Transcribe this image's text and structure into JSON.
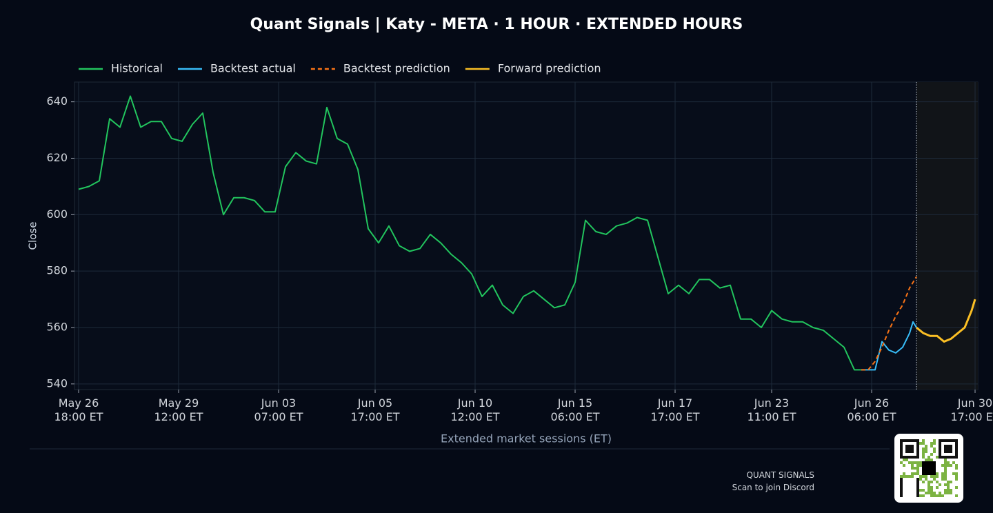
{
  "chart_data": {
    "type": "line",
    "title": "Quant Signals | Katy - META  ·  1 HOUR  ·  EXTENDED HOURS",
    "y_label": "Close",
    "x_label": "Extended market sessions (ET)",
    "ylim": [
      538,
      647
    ],
    "yticks": [
      540,
      560,
      580,
      600,
      620,
      640
    ],
    "xlim": [
      -1.2,
      260.8
    ],
    "xticks": [
      {
        "value": 0,
        "label": "May 26\n18:00 ET"
      },
      {
        "value": 29,
        "label": "May 29\n12:00 ET"
      },
      {
        "value": 58,
        "label": "Jun 03\n07:00 ET"
      },
      {
        "value": 86,
        "label": "Jun 05\n17:00 ET"
      },
      {
        "value": 115,
        "label": "Jun 10\n12:00 ET"
      },
      {
        "value": 144,
        "label": "Jun 15\n06:00 ET"
      },
      {
        "value": 173,
        "label": "Jun 17\n17:00 ET"
      },
      {
        "value": 201,
        "label": "Jun 23\n11:00 ET"
      },
      {
        "value": 230,
        "label": "Jun 26\n06:00 ET"
      },
      {
        "value": 260,
        "label": "Jun 30\n17:00 ET"
      }
    ],
    "grid": true,
    "legend": "top-left",
    "series": [
      {
        "name": "Historical",
        "color": "#22c55e",
        "dashed": false,
        "x": [
          0,
          3,
          6,
          9,
          12,
          15,
          18,
          21,
          24,
          27,
          30,
          33,
          36,
          39,
          42,
          45,
          48,
          51,
          54,
          57,
          60,
          63,
          66,
          69,
          72,
          75,
          78,
          81,
          84,
          87,
          90,
          93,
          96,
          99,
          102,
          105,
          108,
          111,
          114,
          117,
          120,
          123,
          126,
          129,
          132,
          135,
          138,
          141,
          144,
          147,
          150,
          153,
          156,
          159,
          162,
          165,
          168,
          171,
          174,
          177,
          180,
          183,
          186,
          189,
          192,
          195,
          198,
          201,
          204,
          207,
          210,
          213,
          216,
          219,
          222,
          225,
          227
        ],
        "values": [
          609,
          610,
          612,
          634,
          631,
          642,
          631,
          633,
          633,
          627,
          626,
          632,
          636,
          615,
          600,
          606,
          606,
          605,
          601,
          601,
          617,
          622,
          619,
          618,
          638,
          627,
          625,
          616,
          595,
          590,
          596,
          589,
          587,
          588,
          593,
          590,
          586,
          583,
          579,
          571,
          575,
          568,
          565,
          571,
          573,
          570,
          567,
          568,
          576,
          598,
          594,
          593,
          596,
          597,
          599,
          598,
          585,
          572,
          575,
          572,
          577,
          577,
          574,
          575,
          563,
          563,
          560,
          566,
          563,
          562,
          562,
          560,
          559,
          556,
          553,
          545,
          545
        ]
      },
      {
        "name": "Backtest actual",
        "color": "#38bdf8",
        "dashed": false,
        "x": [
          227,
          229,
          231,
          233,
          235,
          237,
          239,
          241,
          242,
          243
        ],
        "values": [
          545,
          545,
          545,
          555,
          552,
          551,
          553,
          558,
          562,
          560
        ]
      },
      {
        "name": "Backtest prediction",
        "color": "#f97316",
        "dashed": true,
        "x": [
          227,
          229,
          231,
          233,
          235,
          237,
          239,
          241,
          243
        ],
        "values": [
          545,
          545,
          548,
          553,
          559,
          564,
          568,
          574,
          578
        ]
      },
      {
        "name": "Forward prediction",
        "color": "#fbbf24",
        "dashed": false,
        "x": [
          243,
          245,
          247,
          249,
          251,
          253,
          255,
          257,
          259,
          260
        ],
        "values": [
          560,
          558,
          557,
          557,
          555,
          556,
          558,
          560,
          566,
          570
        ]
      }
    ]
  },
  "footer": {
    "brand": "QUANT SIGNALS",
    "cta": "Scan to join Discord"
  }
}
